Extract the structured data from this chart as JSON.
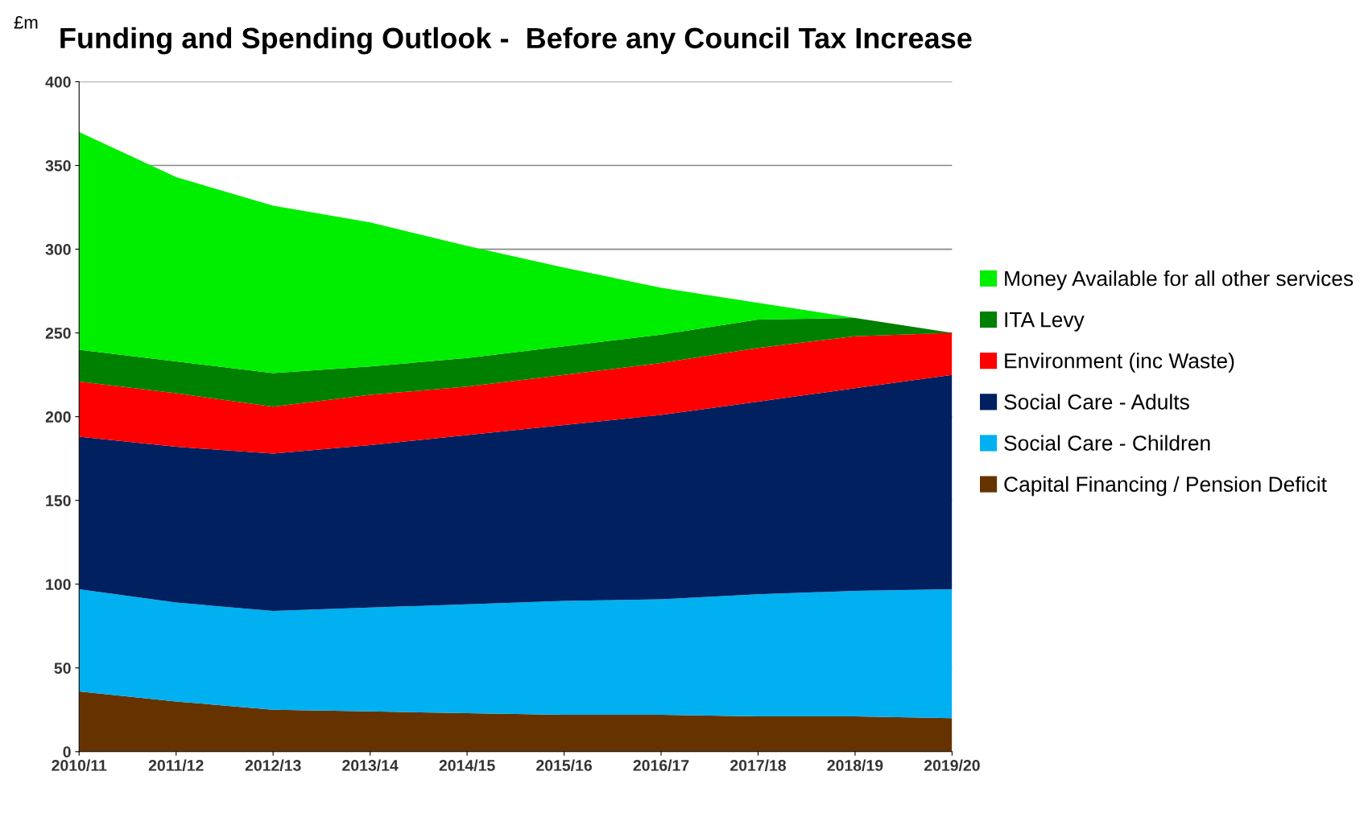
{
  "chart_data": {
    "type": "area",
    "stacked": true,
    "title": "Funding and Spending Outlook -  Before any Council Tax Increase",
    "ylabel": "£m",
    "categories": [
      "2010/11",
      "2011/12",
      "2012/13",
      "2013/14",
      "2014/15",
      "2015/16",
      "2016/17",
      "2017/18",
      "2018/19",
      "2019/20"
    ],
    "series": [
      {
        "name": "Capital Financing / Pension Deficit",
        "color": "#663300",
        "values": [
          36,
          30,
          25,
          24,
          23,
          22,
          22,
          21,
          21,
          20
        ]
      },
      {
        "name": "Social Care - Children",
        "color": "#00b0f0",
        "values": [
          61,
          59,
          59,
          62,
          65,
          68,
          69,
          73,
          75,
          77
        ]
      },
      {
        "name": "Social Care - Adults",
        "color": "#002060",
        "values": [
          91,
          93,
          94,
          97,
          101,
          105,
          110,
          115,
          121,
          128
        ]
      },
      {
        "name": "Environment (inc Waste)",
        "color": "#ff0000",
        "values": [
          33,
          32,
          28,
          30,
          29,
          30,
          31,
          32,
          31,
          25
        ]
      },
      {
        "name": "ITA Levy",
        "color": "#008000",
        "values": [
          19,
          19,
          20,
          17,
          17,
          17,
          17,
          17,
          11,
          0
        ]
      },
      {
        "name": "Money Available for all other services",
        "color": "#00ee00",
        "values": [
          130,
          110,
          100,
          86,
          67,
          47,
          28,
          10,
          0,
          0
        ]
      }
    ],
    "ylim": [
      0,
      400
    ],
    "yticks": [
      0,
      50,
      100,
      150,
      200,
      250,
      300,
      350,
      400
    ],
    "grid": "y",
    "legend": "right"
  }
}
